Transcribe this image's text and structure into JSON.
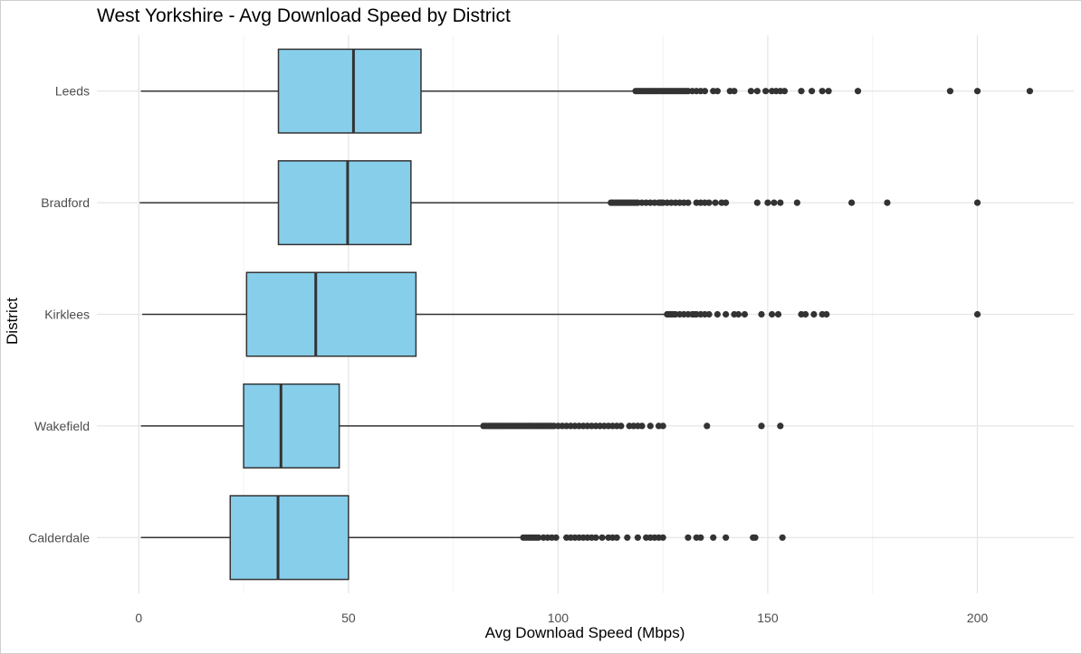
{
  "chart_data": {
    "type": "boxplot",
    "orientation": "horizontal",
    "title": "West Yorkshire - Avg Download Speed by District",
    "xlabel": "Avg Download Speed (Mbps)",
    "ylabel": "District",
    "xlim": [
      -10,
      223
    ],
    "x_ticks": [
      0,
      50,
      100,
      150,
      200
    ],
    "x_tick_labels": [
      "0",
      "50",
      "100",
      "150",
      "200"
    ],
    "grid": true,
    "box_color": "#87ceeb",
    "outline_color": "#333333",
    "categories": [
      "Leeds",
      "Bradford",
      "Kirklees",
      "Wakefield",
      "Calderdale"
    ],
    "boxes": [
      {
        "name": "Leeds",
        "whisker_low": 0.5,
        "q1": 33.3,
        "median": 51.2,
        "q3": 67.3,
        "whisker_high": 118.3,
        "outliers": [
          118.5,
          119,
          119.5,
          120,
          120.5,
          121,
          121.5,
          122,
          122.5,
          123,
          123.5,
          124,
          124.5,
          125,
          125.5,
          126,
          126.5,
          127,
          127.5,
          128,
          128.5,
          129,
          129.5,
          130,
          130.5,
          131,
          132,
          133,
          134,
          135,
          137,
          138,
          141,
          142,
          146,
          147.5,
          149.5,
          151,
          152,
          153,
          154,
          158,
          160.5,
          163,
          164.5,
          171.5,
          193.5,
          200,
          212.5
        ]
      },
      {
        "name": "Bradford",
        "whisker_low": 0.2,
        "q1": 33.3,
        "median": 49.8,
        "q3": 64.9,
        "whisker_high": 112.4,
        "outliers": [
          112.6,
          113,
          113.5,
          114,
          114.5,
          115,
          115.5,
          116,
          116.5,
          117,
          117.5,
          118,
          118.5,
          119,
          120,
          121,
          122,
          123,
          124,
          124.5,
          125,
          126,
          127,
          128,
          129,
          130,
          131,
          133,
          134,
          135,
          136,
          137.5,
          139,
          140,
          147.5,
          150,
          151.5,
          153,
          157,
          170,
          178.5,
          200
        ]
      },
      {
        "name": "Kirklees",
        "whisker_low": 0.8,
        "q1": 25.7,
        "median": 42.2,
        "q3": 66.1,
        "whisker_high": 125.8,
        "outliers": [
          126,
          126.5,
          127,
          127.5,
          128,
          129,
          130,
          131,
          132,
          132.5,
          133,
          134,
          135,
          136,
          138,
          140,
          142,
          143,
          144.5,
          148.5,
          151,
          152.5,
          158,
          159,
          161,
          163,
          164,
          200
        ]
      },
      {
        "name": "Wakefield",
        "whisker_low": 0.5,
        "q1": 25.0,
        "median": 33.9,
        "q3": 47.8,
        "whisker_high": 82.0,
        "outliers": [
          82.2,
          82.8,
          83.4,
          84,
          84.6,
          85.2,
          85.8,
          86.4,
          87,
          87.6,
          88.2,
          88.8,
          89.4,
          90,
          90.6,
          91.2,
          91.8,
          92.4,
          93,
          93.6,
          94.2,
          94.8,
          95.4,
          96,
          96.6,
          97.2,
          97.8,
          98.4,
          99,
          100,
          101,
          102,
          103,
          104,
          105,
          106,
          107,
          108,
          109,
          110,
          111,
          112,
          113,
          114,
          115,
          117,
          118,
          119,
          120,
          122,
          124,
          125,
          135.5,
          148.5,
          153
        ]
      },
      {
        "name": "Calderdale",
        "whisker_low": 0.5,
        "q1": 21.8,
        "median": 33.2,
        "q3": 50.0,
        "whisker_high": 91.5,
        "outliers": [
          91.7,
          92.3,
          92.9,
          93.5,
          94.1,
          94.7,
          95.3,
          96.5,
          97.5,
          98.5,
          99.5,
          102,
          103,
          104,
          105,
          106,
          107,
          108,
          109,
          110.5,
          112,
          113,
          114,
          116.5,
          119,
          121,
          122,
          123,
          124,
          125,
          131,
          133,
          134,
          137,
          140,
          146.5,
          147,
          153.5
        ]
      }
    ]
  }
}
